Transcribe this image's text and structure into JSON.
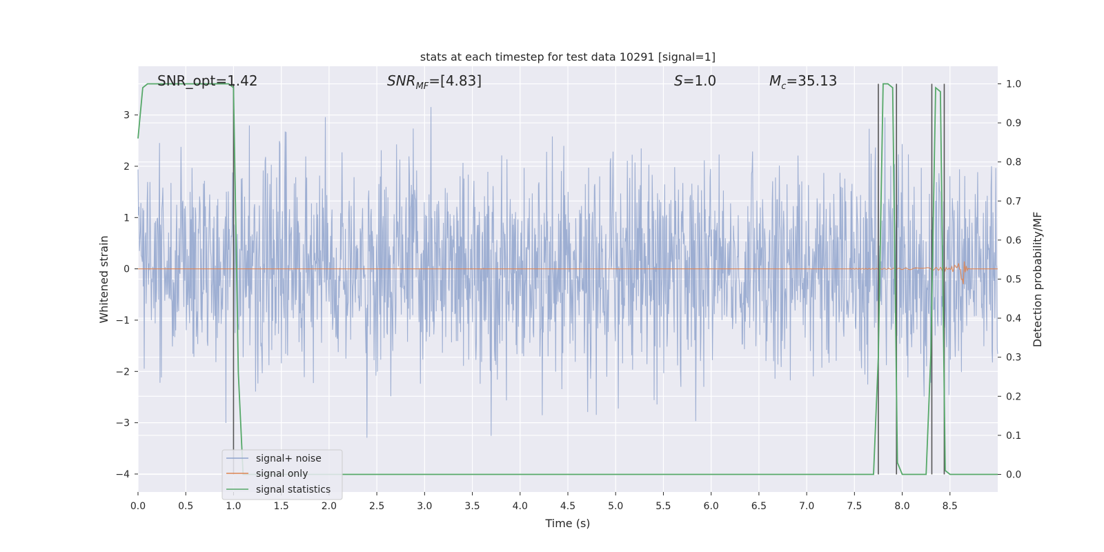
{
  "chart_data": {
    "type": "line",
    "title": "stats at each timestep for test data 10291 [signal=1]",
    "xlabel": "Time (s)",
    "ylabel": "Whitened strain",
    "ylabel_right": "Detection probability/MF",
    "xlim": [
      0.0,
      9.0
    ],
    "ylim_left": [
      -4.35,
      3.95
    ],
    "ylim_right": [
      -0.045,
      1.045
    ],
    "x_ticks": [
      0.0,
      0.5,
      1.0,
      1.5,
      2.0,
      2.5,
      3.0,
      3.5,
      4.0,
      4.5,
      5.0,
      5.5,
      6.0,
      6.5,
      7.0,
      7.5,
      8.0,
      8.5
    ],
    "x_tick_labels": [
      "0.0",
      "0.5",
      "1.0",
      "1.5",
      "2.0",
      "2.5",
      "3.0",
      "3.5",
      "4.0",
      "4.5",
      "5.0",
      "5.5",
      "6.0",
      "6.5",
      "7.0",
      "7.5",
      "8.0",
      "8.5"
    ],
    "y_left_ticks": [
      -4,
      -3,
      -2,
      -1,
      0,
      1,
      2,
      3
    ],
    "y_left_tick_labels": [
      "−4",
      "−3",
      "−2",
      "−1",
      "0",
      "1",
      "2",
      "3"
    ],
    "y_right_ticks": [
      0.0,
      0.1,
      0.2,
      0.3,
      0.4,
      0.5,
      0.6,
      0.7,
      0.8,
      0.9,
      1.0
    ],
    "y_right_tick_labels": [
      "0.0",
      "0.1",
      "0.2",
      "0.3",
      "0.4",
      "0.5",
      "0.6",
      "0.7",
      "0.8",
      "0.9",
      "1.0"
    ],
    "grid": true,
    "legend_placement": "lower-left",
    "annotations": [
      {
        "label": "SNR_opt=1.42"
      },
      {
        "label": "SNR",
        "sub": "MF",
        "suffix": "=[4.83]",
        "italic": true
      },
      {
        "label": "S",
        "suffix": "=1.0",
        "italic": true
      },
      {
        "label": "M",
        "sub": "c",
        "suffix": "=35.13",
        "italic": true
      }
    ],
    "series": [
      {
        "name": "signal+ noise",
        "color": "#8fa3cc",
        "axis": "left",
        "description_range": [
          -3.7,
          3.4
        ],
        "n_samples": 1800
      },
      {
        "name": "signal only",
        "color": "#dd8452",
        "axis": "left",
        "chirp_peak_time": 8.65,
        "chirp_peak_amplitude": 0.3
      },
      {
        "name": "signal statistics",
        "color": "#55a868",
        "axis": "right",
        "x": [
          0.0,
          0.05,
          0.1,
          0.15,
          0.2,
          0.25,
          0.3,
          0.35,
          0.4,
          0.45,
          0.5,
          0.55,
          0.6,
          0.65,
          0.7,
          0.75,
          0.8,
          0.85,
          0.9,
          0.95,
          1.0,
          1.05,
          1.1,
          1.15,
          7.0,
          7.5,
          7.55,
          7.6,
          7.65,
          7.7,
          7.75,
          7.8,
          7.85,
          7.9,
          7.95,
          8.0,
          8.05,
          8.1,
          8.15,
          8.2,
          8.25,
          8.3,
          8.35,
          8.4,
          8.45,
          8.5,
          8.55,
          8.6,
          8.65,
          8.7,
          8.75,
          8.8,
          8.85,
          8.9,
          8.95,
          9.0
        ],
        "y": [
          0.86,
          0.99,
          1.0,
          1.0,
          1.0,
          1.0,
          1.0,
          1.0,
          1.0,
          1.0,
          1.0,
          1.0,
          1.0,
          1.0,
          1.0,
          1.0,
          1.0,
          1.0,
          1.0,
          1.0,
          0.99,
          0.26,
          0.0,
          0.0,
          0.0,
          0.0,
          0.0,
          0.0,
          0.0,
          0.0,
          0.3,
          1.0,
          1.0,
          0.99,
          0.03,
          0.0,
          0.0,
          0.0,
          0.0,
          0.0,
          0.0,
          0.31,
          0.99,
          0.98,
          0.01,
          0.0,
          0.0,
          0.0,
          0.0,
          0.0,
          0.0,
          0.0,
          0.0,
          0.0,
          0.0,
          0.0
        ]
      }
    ],
    "vertical_markers": {
      "color": "#555555",
      "x": [
        1.0,
        7.75,
        7.94,
        8.31,
        8.44
      ],
      "y_range": [
        0.0,
        1.0
      ]
    }
  }
}
